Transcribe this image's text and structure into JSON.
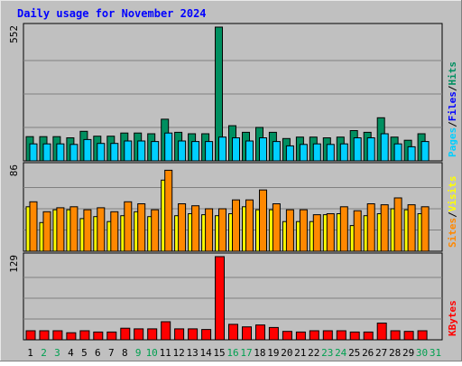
{
  "chart_data": {
    "type": "bar",
    "title": "Daily usage for November 2024",
    "categories": [
      "1",
      "2",
      "3",
      "4",
      "5",
      "6",
      "7",
      "8",
      "9",
      "10",
      "11",
      "12",
      "13",
      "14",
      "15",
      "16",
      "17",
      "18",
      "19",
      "20",
      "21",
      "22",
      "23",
      "24",
      "25",
      "26",
      "27",
      "28",
      "29",
      "30",
      "31"
    ],
    "weekend_days": [
      "2",
      "3",
      "9",
      "10",
      "16",
      "17",
      "23",
      "24",
      "30",
      "31"
    ],
    "panels": [
      {
        "name": "hits-files-pages",
        "ymax": 552,
        "ymax_label": "552",
        "legend": [
          "Pages",
          "/",
          "Files",
          "/",
          "Hits"
        ],
        "series": [
          {
            "name": "Hits",
            "color": "#008f60",
            "values": [
              100,
              100,
              100,
              95,
              122,
              102,
              102,
              115,
              115,
              112,
              172,
              118,
              112,
              112,
              552,
              145,
              118,
              138,
              118,
              92,
              98,
              98,
              95,
              98,
              125,
              118,
              178,
              98,
              85,
              112,
              0
            ]
          },
          {
            "name": "Files",
            "color": "#00cfff",
            "values": [
              70,
              70,
              70,
              68,
              88,
              72,
              72,
              82,
              82,
              80,
              115,
              82,
              80,
              80,
              98,
              95,
              82,
              95,
              80,
              62,
              68,
              70,
              68,
              70,
              95,
              95,
              112,
              70,
              58,
              80,
              0
            ]
          }
        ]
      },
      {
        "name": "visits-sites",
        "ymax": 86,
        "ymax_label": "86",
        "legend": [
          "Sites",
          "/",
          "Visits"
        ],
        "series": [
          {
            "name": "Visits",
            "color": "#ffff00",
            "values": [
              45,
              29,
              42,
              42,
              33,
              35,
              30,
              36,
              40,
              35,
              72,
              36,
              38,
              37,
              36,
              38,
              45,
              42,
              42,
              30,
              30,
              30,
              37,
              38,
              26,
              36,
              38,
              43,
              42,
              38,
              0
            ]
          },
          {
            "name": "Sites",
            "color": "#ff8800",
            "values": [
              50,
              40,
              44,
              45,
              42,
              44,
              40,
              50,
              48,
              42,
              82,
              48,
              46,
              43,
              43,
              52,
              52,
              62,
              48,
              42,
              42,
              37,
              38,
              45,
              41,
              48,
              47,
              54,
              47,
              45,
              0
            ]
          }
        ]
      },
      {
        "name": "kbytes",
        "ymax": 129,
        "ymax_label": "129",
        "legend": [
          "KBytes"
        ],
        "series": [
          {
            "name": "KBytes",
            "color": "#ff0000",
            "values": [
              14,
              14,
              14,
              11,
              14,
              12,
              12,
              18,
              17,
              17,
              28,
              17,
              17,
              16,
              129,
              24,
              20,
              23,
              19,
              13,
              12,
              14,
              14,
              14,
              12,
              12,
              26,
              14,
              13,
              14,
              0
            ]
          }
        ]
      }
    ]
  }
}
